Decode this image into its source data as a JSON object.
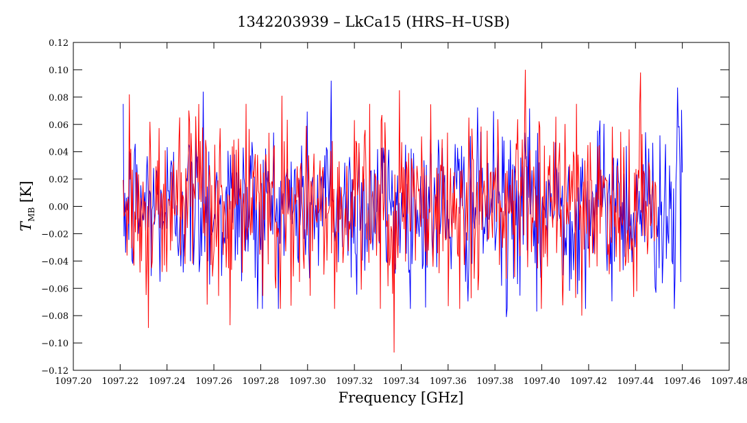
{
  "chart_data": {
    "type": "line",
    "title": "1342203939 – LkCa15 (HRS–H–USB)",
    "xlabel": "Frequency [GHz]",
    "ylabel_main": "T",
    "ylabel_sub": "MB",
    "ylabel_unit": " [K]",
    "xlim": [
      1097.2,
      1097.48
    ],
    "ylim": [
      -0.12,
      0.12
    ],
    "xticks": [
      1097.2,
      1097.22,
      1097.24,
      1097.26,
      1097.28,
      1097.3,
      1097.32,
      1097.34,
      1097.36,
      1097.38,
      1097.4,
      1097.42,
      1097.44,
      1097.46,
      1097.48
    ],
    "xtick_labels": [
      "1097.20",
      "1097.22",
      "1097.24",
      "1097.26",
      "1097.28",
      "1097.30",
      "1097.32",
      "1097.34",
      "1097.36",
      "1097.38",
      "1097.40",
      "1097.42",
      "1097.44",
      "1097.46",
      "1097.48"
    ],
    "yticks": [
      -0.12,
      -0.1,
      -0.08,
      -0.06,
      -0.04,
      -0.02,
      0.0,
      0.02,
      0.04,
      0.06,
      0.08,
      0.1,
      0.12
    ],
    "ytick_labels": [
      "−0.12",
      "−0.10",
      "−0.08",
      "−0.06",
      "−0.04",
      "−0.02",
      "0.00",
      "0.02",
      "0.04",
      "0.06",
      "0.08",
      "0.10",
      "0.12"
    ],
    "series": [
      {
        "name": "blue",
        "color": "#0000ff",
        "x_start": 1097.2213,
        "x_end": 1097.46,
        "n_points": 700,
        "noise_sigma": 0.03,
        "seed": 12345,
        "anchors": [
          {
            "x": 1097.2555,
            "y": 0.084
          },
          {
            "x": 1097.2785,
            "y": -0.075
          },
          {
            "x": 1097.31,
            "y": 0.092
          },
          {
            "x": 1097.385,
            "y": -0.081
          },
          {
            "x": 1097.398,
            "y": -0.077
          },
          {
            "x": 1097.458,
            "y": 0.087
          },
          {
            "x": 1097.4565,
            "y": -0.075
          }
        ]
      },
      {
        "name": "red",
        "color": "#ff0000",
        "x_start": 1097.2213,
        "x_end": 1097.449,
        "n_points": 700,
        "noise_sigma": 0.032,
        "seed": 67890,
        "anchors": [
          {
            "x": 1097.224,
            "y": 0.082
          },
          {
            "x": 1097.232,
            "y": -0.089
          },
          {
            "x": 1097.267,
            "y": -0.087
          },
          {
            "x": 1097.289,
            "y": 0.081
          },
          {
            "x": 1097.337,
            "y": -0.107
          },
          {
            "x": 1097.3392,
            "y": 0.085
          },
          {
            "x": 1097.393,
            "y": 0.1
          },
          {
            "x": 1097.442,
            "y": 0.098
          },
          {
            "x": 1097.417,
            "y": -0.08
          }
        ]
      }
    ],
    "overlay": {
      "name": "highlight-blob",
      "color": "#8a8ad8",
      "x": 1097.327,
      "y": -0.005,
      "rx_data": 0.004,
      "ry_data": 0.03
    }
  }
}
